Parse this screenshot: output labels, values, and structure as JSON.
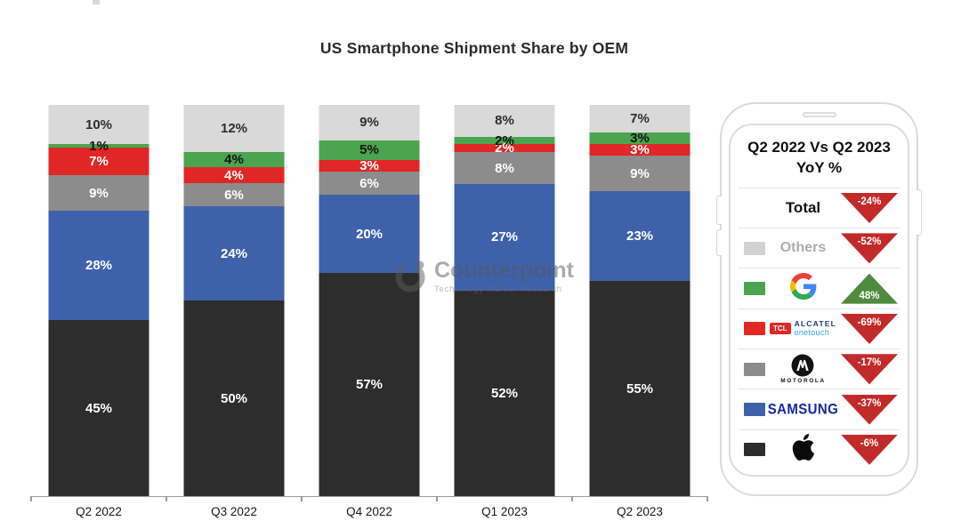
{
  "title": "US Smartphone Shipment Share by OEM",
  "watermark": {
    "name": "Counterpoint",
    "tagline": "Technology Market Research"
  },
  "chart_data": {
    "type": "bar",
    "stacked": true,
    "title": "US Smartphone Shipment Share by OEM",
    "categories": [
      "Q2 2022",
      "Q3 2022",
      "Q4 2022",
      "Q1 2023",
      "Q2 2023"
    ],
    "series": [
      {
        "name": "Apple",
        "color": "#2d2d2d",
        "label_color": "#ffffff",
        "values": [
          45,
          50,
          57,
          52,
          55
        ]
      },
      {
        "name": "Samsung",
        "color": "#3e61ab",
        "label_color": "#ffffff",
        "values": [
          28,
          24,
          20,
          27,
          23
        ]
      },
      {
        "name": "Motorola",
        "color": "#8c8c8c",
        "label_color": "#ffffff",
        "values": [
          9,
          6,
          6,
          8,
          9
        ]
      },
      {
        "name": "TCL-Alcatel",
        "color": "#e02726",
        "label_color": "#ffffff",
        "values": [
          7,
          4,
          3,
          2,
          3
        ]
      },
      {
        "name": "Google",
        "color": "#4aa54e",
        "label_color": "#141414",
        "values": [
          1,
          4,
          5,
          2,
          3
        ]
      },
      {
        "name": "Others",
        "color": "#d9d9d9",
        "label_color": "#2d2d2d",
        "values": [
          10,
          12,
          9,
          8,
          7
        ]
      }
    ],
    "value_suffix": "%",
    "ylim": [
      0,
      100
    ],
    "grid": false,
    "legend_position": "right-panel"
  },
  "legend_panel": {
    "title_line1": "Q2 2022 Vs Q2 2023",
    "title_line2": "YoY %",
    "triangle_colors": {
      "down": "#c22a29",
      "up": "#4e8b3e"
    },
    "rows": [
      {
        "label": "Total",
        "change": "-24%",
        "direction": "down"
      },
      {
        "label": "Others",
        "change": "-52%",
        "direction": "down",
        "swatch": "#d2d2d2"
      },
      {
        "label": "Google",
        "change": "48%",
        "direction": "up",
        "swatch": "#4aa54e"
      },
      {
        "label": "TCL Alcatel onetouch",
        "change": "-69%",
        "direction": "down",
        "swatch": "#e02726",
        "badge": "TCL",
        "line1": "ALCATEL",
        "line2": "onetouch"
      },
      {
        "label": "Motorola",
        "change": "-17%",
        "direction": "down",
        "swatch": "#8c8c8c",
        "logo_text": "MOTOROLA"
      },
      {
        "label": "Samsung",
        "change": "-37%",
        "direction": "down",
        "swatch": "#3e61ab",
        "logo_text": "SAMSUNG",
        "logo_color": "#1428a0"
      },
      {
        "label": "Apple",
        "change": "-6%",
        "direction": "down",
        "swatch": "#2d2d2d"
      }
    ]
  }
}
